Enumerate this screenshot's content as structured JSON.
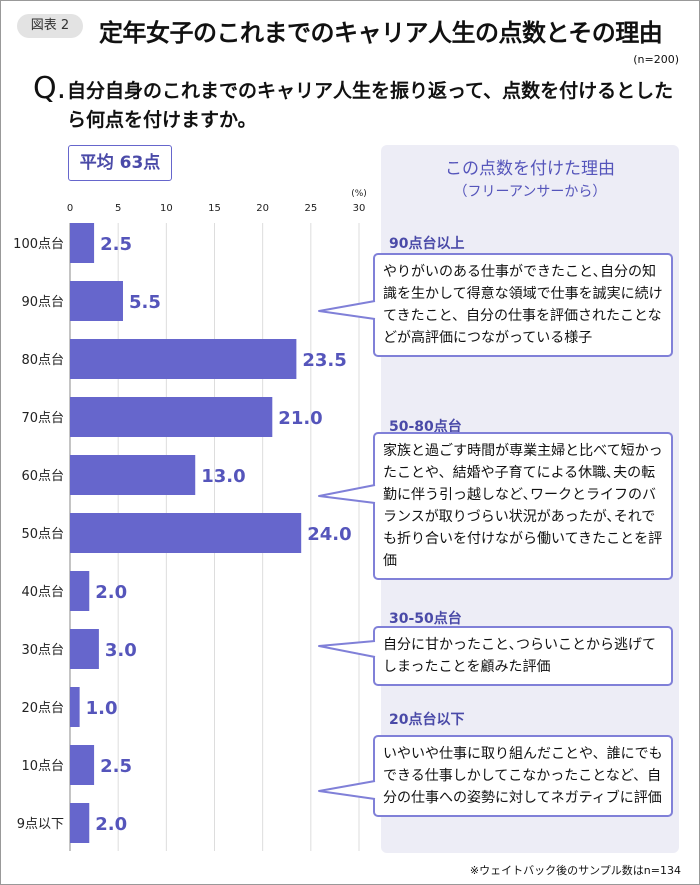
{
  "figure_label": "図表 2",
  "title": "定年女子のこれまでのキャリア人生の点数とその理由",
  "sample": "(n=200)",
  "question_mark": "Q.",
  "question": "自分自身のこれまでのキャリア人生を振り返って、点数を付けるとしたら何点を付けますか。",
  "average": "平均 63点",
  "reasons": {
    "title": "この点数を付けた理由",
    "subtitle": "（フリーアンサーから）",
    "groups": [
      {
        "label": "90点台以上",
        "text": "やりがいのある仕事ができたこと､自分の知識を生かして得意な領域で仕事を誠実に続けてきたこと、自分の仕事を評価されたことなどが高評価につながっている様子"
      },
      {
        "label": "50-80点台",
        "text": "家族と過ごす時間が専業主婦と比べて短かったことや、結婚や子育てによる休職､夫の転勤に伴う引っ越しなど､ワークとライフのバランスが取りづらい状況があったが､それでも折り合いを付けながら働いてきたことを評価"
      },
      {
        "label": "30-50点台",
        "text": "自分に甘かったこと､つらいことから逃げてしまったことを顧みた評価"
      },
      {
        "label": "20点台以下",
        "text": "いやいや仕事に取り組んだことや、誰にでもできる仕事しかしてこなかったことなど、自分の仕事への姿勢に対してネガティブに評価"
      }
    ]
  },
  "footnote": "※ウェイトバック後のサンプル数はn=134",
  "colors": {
    "bar": "#6666cc",
    "label": "#5555bb",
    "panel": "#ededf6",
    "bubble_border": "#8080d8"
  },
  "chart_data": {
    "type": "bar",
    "orientation": "horizontal",
    "categories": [
      "100点台",
      "90点台",
      "80点台",
      "70点台",
      "60点台",
      "50点台",
      "40点台",
      "30点台",
      "20点台",
      "10点台",
      "9点以下"
    ],
    "values": [
      2.5,
      5.5,
      23.5,
      21.0,
      13.0,
      24.0,
      2.0,
      3.0,
      1.0,
      2.5,
      2.0
    ],
    "value_labels": [
      "2.5",
      "5.5",
      "23.5",
      "21.0",
      "13.0",
      "24.0",
      "2.0",
      "3.0",
      "1.0",
      "2.5",
      "2.0"
    ],
    "xlim": [
      0,
      30
    ],
    "xticks": [
      "0",
      "5",
      "10",
      "15",
      "20",
      "25",
      "30"
    ],
    "unit": "(%)",
    "grid": true
  }
}
